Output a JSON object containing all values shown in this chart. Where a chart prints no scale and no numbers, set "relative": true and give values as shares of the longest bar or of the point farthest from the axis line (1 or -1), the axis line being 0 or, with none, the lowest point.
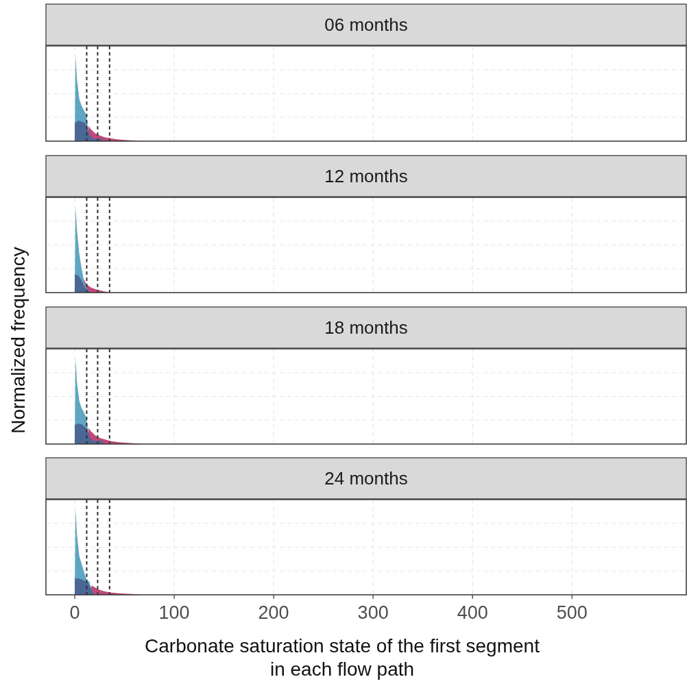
{
  "chart_data": [
    {
      "type": "area",
      "title": "06 months",
      "relative": true,
      "xlim": [
        -29,
        615
      ],
      "xticks": [
        0,
        100,
        200,
        300,
        400,
        500
      ],
      "grid": true,
      "tick_labels": false,
      "ylabel": "Normalized frequency",
      "ref_lines": [
        {
          "axis": "x",
          "value": 12,
          "line_style": "dashed",
          "color": "#333333"
        },
        {
          "axis": "x",
          "value": 23,
          "line_style": "dashed",
          "color": "#333333"
        },
        {
          "axis": "x",
          "value": 35,
          "line_style": "dashed",
          "color": "#333333"
        }
      ],
      "series": [
        {
          "color": "#c0487a",
          "x": [
            13,
            13.8,
            16.1,
            20.7,
            25.3,
            29.9,
            35.6,
            43.7,
            52.9,
            62,
            69
          ],
          "values": [
            0,
            0.18,
            0.14,
            0.09,
            0.065,
            0.046,
            0.033,
            0.019,
            0.011,
            0.005,
            0
          ]
        },
        {
          "color": "#5fa6c2",
          "x": [
            0,
            0.7,
            2.3,
            4.6,
            6.9,
            9.2,
            11.5,
            12.6,
            13.8,
            16.1,
            18.4
          ],
          "values": [
            0,
            1,
            0.71,
            0.49,
            0.41,
            0.36,
            0.31,
            0.22,
            0.09,
            0.02,
            0
          ]
        },
        {
          "color": "#4a6796",
          "x": [
            0,
            0.01,
            3.4,
            6.9,
            10.3,
            12.6,
            14.9,
            18.4,
            21.8,
            25.3,
            28.7,
            31
          ],
          "values": [
            0,
            0.21,
            0.24,
            0.23,
            0.21,
            0.17,
            0.07,
            0.03,
            0.02,
            0.04,
            0.005,
            0
          ]
        }
      ]
    },
    {
      "type": "area",
      "title": "12 months",
      "relative": true,
      "xlim": [
        -29,
        615
      ],
      "xticks": [
        0,
        100,
        200,
        300,
        400,
        500
      ],
      "grid": true,
      "tick_labels": false,
      "ref_lines": [
        {
          "axis": "x",
          "value": 12,
          "line_style": "dashed",
          "color": "#333333"
        },
        {
          "axis": "x",
          "value": 23,
          "line_style": "dashed",
          "color": "#333333"
        },
        {
          "axis": "x",
          "value": 35,
          "line_style": "dashed",
          "color": "#333333"
        }
      ],
      "series": [
        {
          "color": "#c0487a",
          "x": [
            9,
            9.2,
            11.5,
            16.1,
            20.7,
            27.6,
            35.6
          ],
          "values": [
            0,
            0.16,
            0.1,
            0.06,
            0.04,
            0.02,
            0
          ]
        },
        {
          "color": "#5fa6c2",
          "x": [
            0,
            0.7,
            2.3,
            4.6,
            6.9,
            9.2,
            11.5,
            13.8,
            16.1
          ],
          "values": [
            0,
            1,
            0.72,
            0.45,
            0.28,
            0.14,
            0.06,
            0.02,
            0
          ]
        },
        {
          "color": "#4a6796",
          "x": [
            0,
            0.01,
            3.4,
            6.9,
            10.3,
            13.8,
            16.1
          ],
          "values": [
            0,
            0.21,
            0.2,
            0.14,
            0.06,
            0.02,
            0
          ]
        }
      ]
    },
    {
      "type": "area",
      "title": "18 months",
      "relative": true,
      "xlim": [
        -29,
        615
      ],
      "xticks": [
        0,
        100,
        200,
        300,
        400,
        500
      ],
      "grid": true,
      "tick_labels": false,
      "ref_lines": [
        {
          "axis": "x",
          "value": 12,
          "line_style": "dashed",
          "color": "#333333"
        },
        {
          "axis": "x",
          "value": 23,
          "line_style": "dashed",
          "color": "#333333"
        },
        {
          "axis": "x",
          "value": 35,
          "line_style": "dashed",
          "color": "#333333"
        }
      ],
      "series": [
        {
          "color": "#c0487a",
          "x": [
            13,
            13.8,
            16.1,
            20.7,
            25.3,
            29.9,
            35.6,
            43.7,
            52.9,
            62,
            69
          ],
          "values": [
            0,
            0.19,
            0.15,
            0.1,
            0.07,
            0.055,
            0.036,
            0.022,
            0.014,
            0.006,
            0
          ]
        },
        {
          "color": "#5fa6c2",
          "x": [
            0,
            0.7,
            2.3,
            4.6,
            6.9,
            9.2,
            11.5,
            12.6,
            13.8,
            16.1,
            18.4
          ],
          "values": [
            0,
            1,
            0.71,
            0.5,
            0.42,
            0.37,
            0.31,
            0.23,
            0.09,
            0.02,
            0
          ]
        },
        {
          "color": "#4a6796",
          "x": [
            0,
            0.01,
            3.4,
            6.9,
            10.3,
            12.6,
            14.9,
            18.4,
            21.8,
            25.3,
            28.7,
            31
          ],
          "values": [
            0,
            0.22,
            0.24,
            0.23,
            0.2,
            0.17,
            0.08,
            0.04,
            0.03,
            0.05,
            0.01,
            0
          ]
        }
      ]
    },
    {
      "type": "area",
      "title": "24 months",
      "relative": true,
      "xlim": [
        -29,
        615
      ],
      "xticks": [
        0,
        100,
        200,
        300,
        400,
        500
      ],
      "grid": true,
      "tick_labels": "x",
      "xlabel": "Carbonate saturation state of the first segment\nin each flow path",
      "ref_lines": [
        {
          "axis": "x",
          "value": 12,
          "line_style": "dashed",
          "color": "#333333"
        },
        {
          "axis": "x",
          "value": 23,
          "line_style": "dashed",
          "color": "#333333"
        },
        {
          "axis": "x",
          "value": 35,
          "line_style": "dashed",
          "color": "#333333"
        }
      ],
      "series": [
        {
          "color": "#c0487a",
          "x": [
            16,
            16.8,
            20.7,
            25.3,
            29.9,
            35.6,
            43.7,
            52.9,
            62,
            69
          ],
          "values": [
            0,
            0.11,
            0.083,
            0.056,
            0.039,
            0.028,
            0.017,
            0.011,
            0.006,
            0
          ]
        },
        {
          "color": "#5fa6c2",
          "x": [
            0,
            0.7,
            2.3,
            4.6,
            6.9,
            9.2,
            11.5,
            12.6,
            14.9,
            16.1,
            18.4,
            20.7
          ],
          "values": [
            0,
            1,
            0.69,
            0.45,
            0.36,
            0.27,
            0.19,
            0.17,
            0.15,
            0.09,
            0.02,
            0
          ]
        },
        {
          "color": "#4a6796",
          "x": [
            0,
            0.01,
            3.4,
            6.9,
            10.3,
            13.8,
            16.1,
            18.4,
            20.7
          ],
          "values": [
            0,
            0.19,
            0.19,
            0.18,
            0.16,
            0.13,
            0.08,
            0.02,
            0
          ]
        }
      ]
    }
  ]
}
